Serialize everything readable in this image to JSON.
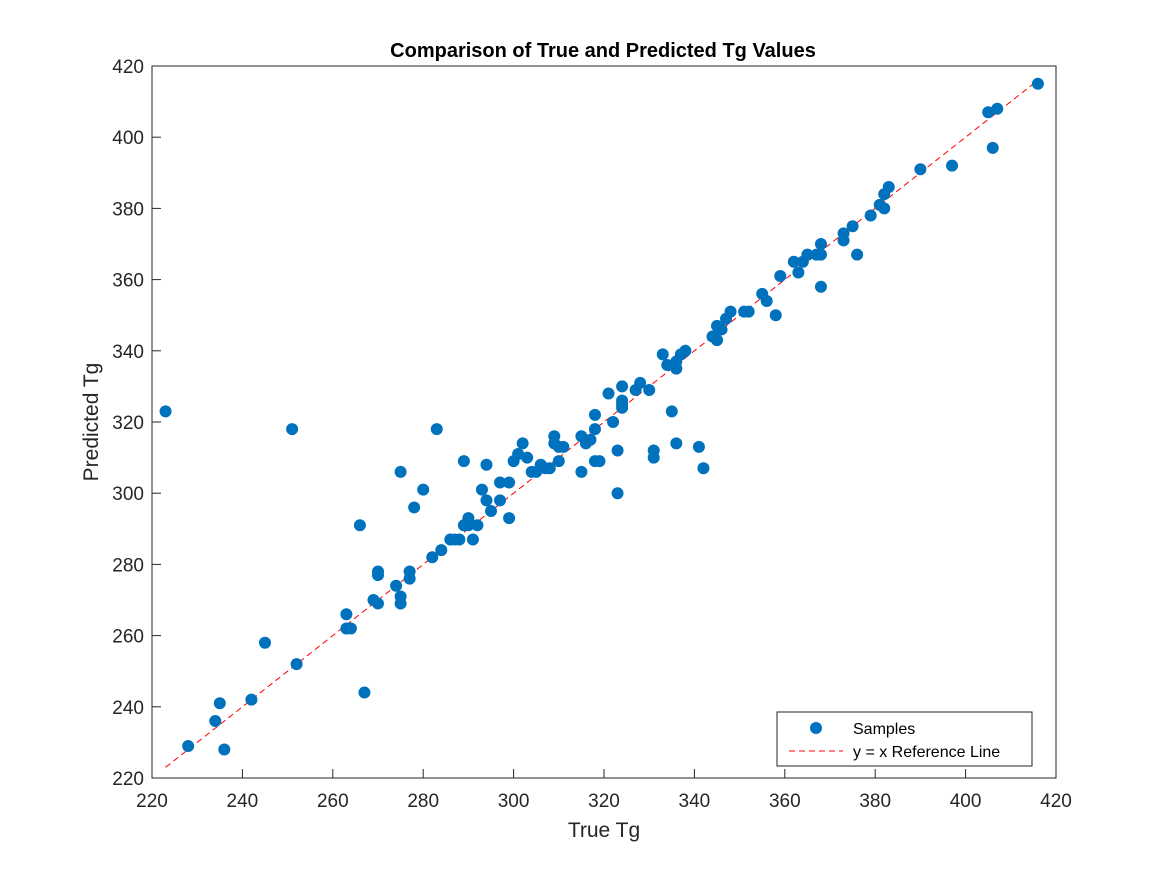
{
  "chart_data": {
    "type": "scatter",
    "title": "Comparison of True and Predicted Tg Values",
    "xlabel": "True Tg",
    "ylabel": "Predicted Tg",
    "xlim": [
      220,
      420
    ],
    "ylim": [
      220,
      420
    ],
    "x_ticks": [
      "220",
      "240",
      "260",
      "280",
      "300",
      "320",
      "340",
      "360",
      "380",
      "400",
      "420"
    ],
    "y_ticks": [
      "220",
      "240",
      "260",
      "280",
      "300",
      "320",
      "340",
      "360",
      "380",
      "400",
      "420"
    ],
    "grid": false,
    "legend_position": "bottom-right",
    "colors": {
      "marker": "#0072BD",
      "reference_line": "#FF0000",
      "axis": "#262626"
    },
    "series": [
      {
        "name": "Samples",
        "style": "markers",
        "points": [
          [
            223,
            323
          ],
          [
            228,
            229
          ],
          [
            234,
            236
          ],
          [
            235,
            241
          ],
          [
            236,
            228
          ],
          [
            242,
            242
          ],
          [
            245,
            258
          ],
          [
            251,
            318
          ],
          [
            252,
            252
          ],
          [
            263,
            266
          ],
          [
            263,
            262
          ],
          [
            264,
            262
          ],
          [
            266,
            291
          ],
          [
            267,
            244
          ],
          [
            269,
            270
          ],
          [
            270,
            277
          ],
          [
            270,
            278
          ],
          [
            270,
            269
          ],
          [
            274,
            274
          ],
          [
            275,
            306
          ],
          [
            275,
            271
          ],
          [
            275,
            269
          ],
          [
            277,
            276
          ],
          [
            277,
            278
          ],
          [
            278,
            296
          ],
          [
            280,
            301
          ],
          [
            282,
            282
          ],
          [
            283,
            318
          ],
          [
            284,
            284
          ],
          [
            286,
            287
          ],
          [
            287,
            287
          ],
          [
            288,
            287
          ],
          [
            289,
            291
          ],
          [
            289,
            309
          ],
          [
            290,
            293
          ],
          [
            290,
            291
          ],
          [
            291,
            287
          ],
          [
            292,
            291
          ],
          [
            293,
            301
          ],
          [
            294,
            308
          ],
          [
            294,
            298
          ],
          [
            295,
            295
          ],
          [
            297,
            298
          ],
          [
            297,
            303
          ],
          [
            299,
            303
          ],
          [
            299,
            293
          ],
          [
            300,
            309
          ],
          [
            301,
            311
          ],
          [
            302,
            314
          ],
          [
            303,
            310
          ],
          [
            304,
            306
          ],
          [
            305,
            306
          ],
          [
            306,
            308
          ],
          [
            307,
            307
          ],
          [
            308,
            307
          ],
          [
            309,
            316
          ],
          [
            309,
            314
          ],
          [
            310,
            313
          ],
          [
            310,
            309
          ],
          [
            311,
            313
          ],
          [
            315,
            316
          ],
          [
            315,
            306
          ],
          [
            316,
            314
          ],
          [
            317,
            315
          ],
          [
            318,
            318
          ],
          [
            318,
            322
          ],
          [
            318,
            309
          ],
          [
            319,
            309
          ],
          [
            321,
            328
          ],
          [
            322,
            320
          ],
          [
            323,
            312
          ],
          [
            323,
            300
          ],
          [
            324,
            325
          ],
          [
            324,
            330
          ],
          [
            324,
            326
          ],
          [
            324,
            324
          ],
          [
            327,
            329
          ],
          [
            328,
            331
          ],
          [
            330,
            329
          ],
          [
            331,
            312
          ],
          [
            331,
            310
          ],
          [
            333,
            339
          ],
          [
            334,
            336
          ],
          [
            335,
            323
          ],
          [
            336,
            337
          ],
          [
            336,
            335
          ],
          [
            336,
            314
          ],
          [
            337,
            339
          ],
          [
            338,
            340
          ],
          [
            341,
            313
          ],
          [
            342,
            307
          ],
          [
            344,
            344
          ],
          [
            345,
            343
          ],
          [
            345,
            347
          ],
          [
            346,
            346
          ],
          [
            347,
            349
          ],
          [
            348,
            351
          ],
          [
            351,
            351
          ],
          [
            352,
            351
          ],
          [
            355,
            356
          ],
          [
            356,
            354
          ],
          [
            358,
            350
          ],
          [
            359,
            361
          ],
          [
            362,
            365
          ],
          [
            363,
            362
          ],
          [
            364,
            365
          ],
          [
            365,
            367
          ],
          [
            367,
            367
          ],
          [
            368,
            370
          ],
          [
            368,
            367
          ],
          [
            368,
            358
          ],
          [
            373,
            373
          ],
          [
            373,
            371
          ],
          [
            375,
            375
          ],
          [
            376,
            367
          ],
          [
            379,
            378
          ],
          [
            381,
            381
          ],
          [
            382,
            380
          ],
          [
            382,
            384
          ],
          [
            383,
            386
          ],
          [
            390,
            391
          ],
          [
            397,
            392
          ],
          [
            405,
            407
          ],
          [
            406,
            397
          ],
          [
            407,
            408
          ],
          [
            416,
            415
          ]
        ]
      },
      {
        "name": "y = x Reference Line",
        "style": "dashed-line",
        "points": [
          [
            223,
            223
          ],
          [
            416,
            416
          ]
        ]
      }
    ]
  }
}
